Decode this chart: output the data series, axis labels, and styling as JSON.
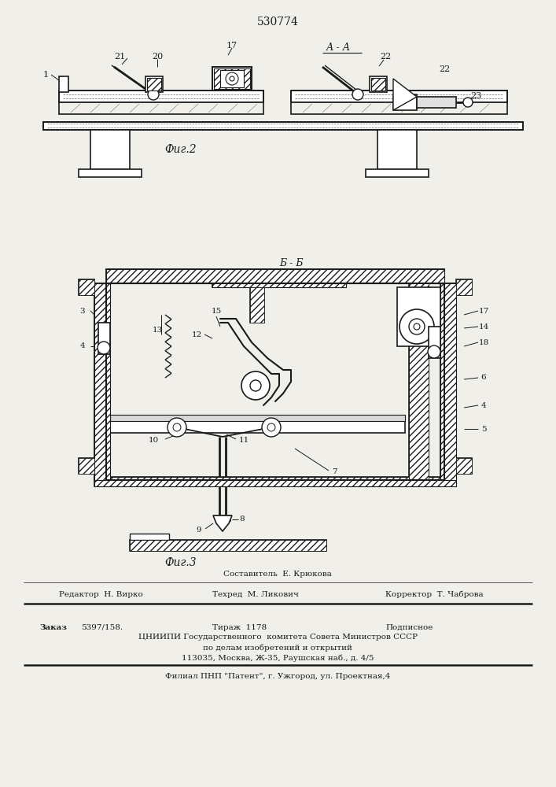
{
  "title": "530774",
  "fig2_label": "Фиг.2",
  "fig3_label": "Фиг.3",
  "bb_label": "Б - Б",
  "aa_label": "А - А",
  "bg_color": "#f0efea",
  "line_color": "#1a1a1a",
  "footer": {
    "sostavitel": "Составитель  Е. Крюкова",
    "redaktor": "Редактор  Н. Вирко",
    "tehred": "Техред  М. Ликович",
    "korrektor": "Корректор  Т. Чаброва",
    "zakaz": "Заказ",
    "zakaz_num": "5397/158.",
    "tirazh": "Тираж  1178",
    "podpisnoe": "Подписное",
    "org1": "ЦНИИПИ Государственного  комитета Совета Министров СССР",
    "org2": "по делам изобретений и открытий",
    "org3": "113035, Москва, Ж-35, Раушская наб., д. 4/5",
    "filial": "Филиал ПНП \"Патент\", г. Ужгород, ул. Проектная,4"
  }
}
